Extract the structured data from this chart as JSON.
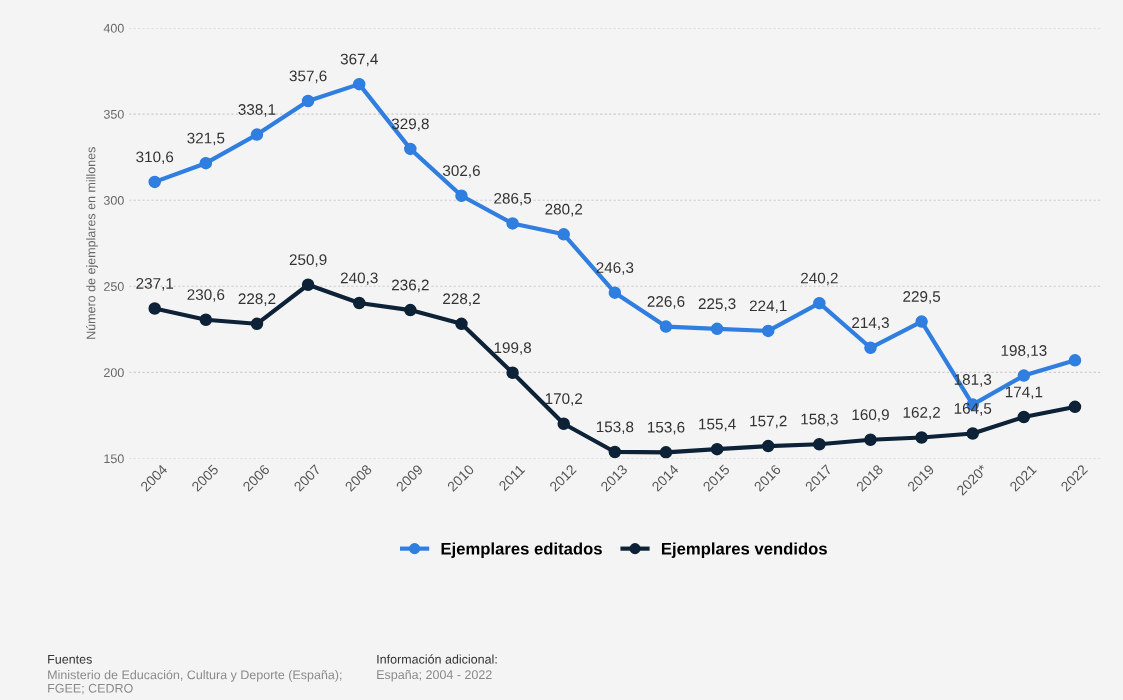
{
  "chart_data": {
    "type": "line",
    "ylabel": "Número de ejemplares en millones",
    "categories": [
      "2004",
      "2005",
      "2006",
      "2007",
      "2008",
      "2009",
      "2010",
      "2011",
      "2012",
      "2013",
      "2014",
      "2015",
      "2016",
      "2017",
      "2018",
      "2019",
      "2020*",
      "2021",
      "2022"
    ],
    "series": [
      {
        "name": "Ejemplares editados",
        "color": "#2f7ee0",
        "values": [
          310.6,
          321.5,
          338.1,
          357.6,
          367.4,
          329.8,
          302.6,
          286.5,
          280.2,
          246.3,
          226.6,
          225.3,
          224.1,
          240.2,
          214.3,
          229.5,
          181.3,
          198.13,
          207
        ],
        "value_labels": [
          "310,6",
          "321,5",
          "338,1",
          "357,6",
          "367,4",
          "329,8",
          "302,6",
          "286,5",
          "280,2",
          "246,3",
          "226,6",
          "225,3",
          "224,1",
          "240,2",
          "214,3",
          "229,5",
          "181,3",
          "198,13",
          null
        ]
      },
      {
        "name": "Ejemplares vendidos",
        "color": "#0d2137",
        "values": [
          237.1,
          230.6,
          228.2,
          250.9,
          240.3,
          236.2,
          228.2,
          199.8,
          170.2,
          153.8,
          153.6,
          155.4,
          157.2,
          158.3,
          160.9,
          162.2,
          164.5,
          174.1,
          180
        ],
        "value_labels": [
          "237,1",
          "230,6",
          "228,2",
          "250,9",
          "240,3",
          "236,2",
          "228,2",
          "199,8",
          "170,2",
          "153,8",
          "153,6",
          "155,4",
          "157,2",
          "158,3",
          "160,9",
          "162,2",
          "164,5",
          "174,1",
          null
        ]
      }
    ],
    "ylim": [
      150,
      400
    ],
    "yticks": [
      150,
      200,
      250,
      300,
      350,
      400
    ],
    "grid": "y",
    "legend": "bottom",
    "marker": "circle",
    "line_style": "solid",
    "annotations": [
      "Fuentes",
      "Ministerio de Educación, Cultura y Deporte (España); FGEE; CEDRO",
      "Información adicional:",
      "España; 2004 - 2022"
    ]
  }
}
